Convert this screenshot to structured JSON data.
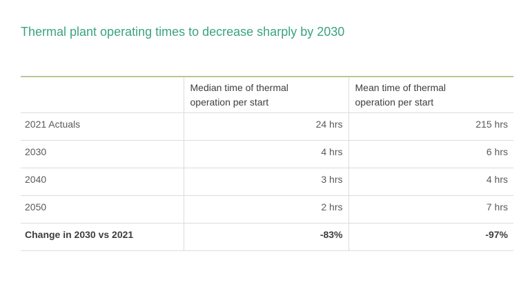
{
  "title": "Thermal plant operating times to decrease sharply by 2030",
  "colors": {
    "title_color": "#3aa284",
    "table_top_border": "#b8c793",
    "row_separator": "#dcdcdc",
    "header_text": "#3d3d3d",
    "body_text": "#595959",
    "bold_text": "#3d3d3d",
    "background": "#ffffff"
  },
  "table": {
    "headers": [
      {
        "line1": "Median time of thermal",
        "line2": "operation per start"
      },
      {
        "line1": "Mean time of thermal",
        "line2": "operation per start"
      }
    ],
    "rows": [
      {
        "label": "2021 Actuals",
        "median": "24 hrs",
        "mean": "215 hrs"
      },
      {
        "label": "2030",
        "median": "4 hrs",
        "mean": "6 hrs"
      },
      {
        "label": "2040",
        "median": "3 hrs",
        "mean": "4 hrs"
      },
      {
        "label": "2050",
        "median": "2 hrs",
        "mean": "7 hrs"
      },
      {
        "label": "Change in 2030 vs 2021",
        "median": "-83%",
        "mean": "-97%"
      }
    ]
  },
  "chart_data": {
    "type": "table",
    "title": "Thermal plant operating times to decrease sharply by 2030",
    "columns": [
      "",
      "Median time of thermal operation per start",
      "Mean time of thermal operation per start"
    ],
    "rows": [
      [
        "2021 Actuals",
        "24 hrs",
        "215 hrs"
      ],
      [
        "2030",
        "4 hrs",
        "6 hrs"
      ],
      [
        "2040",
        "3 hrs",
        "4 hrs"
      ],
      [
        "2050",
        "2 hrs",
        "7 hrs"
      ],
      [
        "Change in 2030 vs 2021",
        "-83%",
        "-97%"
      ]
    ],
    "numeric": {
      "median_hrs": {
        "2021 Actuals": 24,
        "2030": 4,
        "2040": 3,
        "2050": 2
      },
      "mean_hrs": {
        "2021 Actuals": 215,
        "2030": 6,
        "2040": 4,
        "2050": 7
      },
      "change_2030_vs_2021": {
        "median_pct": -83,
        "mean_pct": -97
      }
    }
  }
}
